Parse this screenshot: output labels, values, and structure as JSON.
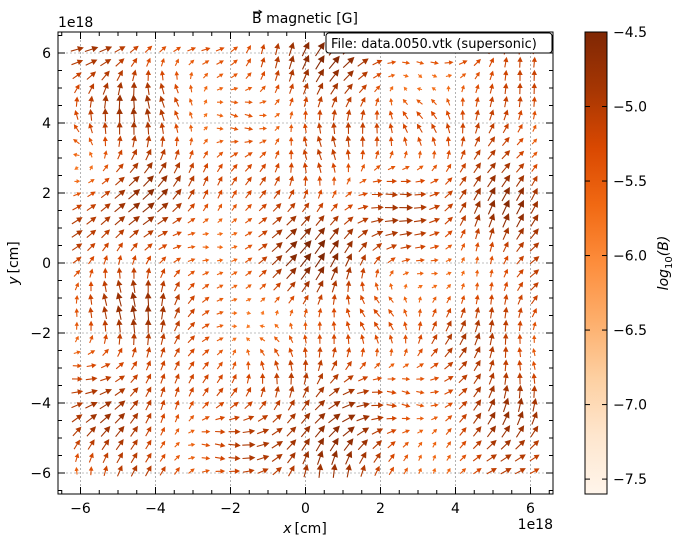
{
  "chart_data": {
    "type": "quiver",
    "title_vec": "B",
    "title_rest": " magnetic [G]",
    "xlabel": "x",
    "ylabel": "y",
    "axis_unit": "[cm]",
    "x_offset_label": "1e18",
    "y_offset_label": "1e18",
    "annotation": "File: data.0050.vtk (supersonic)",
    "xlim": [
      -6.6,
      6.6
    ],
    "ylim": [
      -6.6,
      6.6
    ],
    "xticks": [
      -6,
      -4,
      -2,
      0,
      2,
      4,
      6
    ],
    "yticks": [
      -6,
      -4,
      -2,
      0,
      2,
      4,
      6
    ],
    "xtick_labels": [
      "−6",
      "−4",
      "−2",
      "0",
      "2",
      "4",
      "6"
    ],
    "ytick_labels": [
      "−6",
      "−4",
      "−2",
      "0",
      "2",
      "4",
      "6"
    ],
    "grid": true,
    "vector_grid": {
      "x_range": [
        -6.1,
        6.1
      ],
      "y_range": [
        -5.95,
        6.1
      ],
      "n": 33
    },
    "colorbar": {
      "label_main": "log",
      "label_sub": "10",
      "label_arg": "(B)",
      "range": [
        -7.6,
        -4.5
      ],
      "ticks": [
        -4.5,
        -5.0,
        -5.5,
        -6.0,
        -6.5,
        -7.0,
        -7.5
      ],
      "tick_labels": [
        "−4.5",
        "−5.0",
        "−5.5",
        "−6.0",
        "−6.5",
        "−7.0",
        "−7.5"
      ],
      "colormap": "Oranges",
      "colors": [
        "#fff5eb",
        "#fee6ce",
        "#fdd0a2",
        "#fdae6b",
        "#fd8d3c",
        "#f16913",
        "#d94801",
        "#a63603",
        "#7f2704"
      ]
    }
  }
}
